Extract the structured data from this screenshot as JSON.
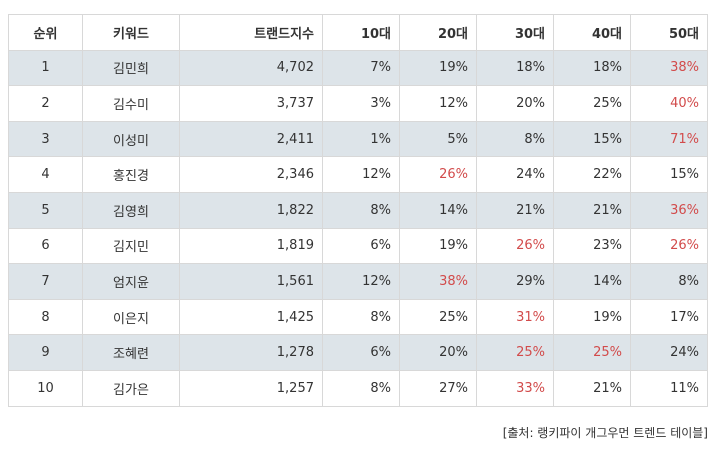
{
  "table": {
    "headers": [
      "순위",
      "키워드",
      "트랜드지수",
      "10대",
      "20대",
      "30대",
      "40대",
      "50대"
    ],
    "rows": [
      {
        "rank": "1",
        "keyword": "김민희",
        "index": "4,702",
        "ages": [
          "7%",
          "19%",
          "18%",
          "18%",
          "38%"
        ],
        "highlight": [
          false,
          false,
          false,
          false,
          true
        ],
        "shaded": true
      },
      {
        "rank": "2",
        "keyword": "김수미",
        "index": "3,737",
        "ages": [
          "3%",
          "12%",
          "20%",
          "25%",
          "40%"
        ],
        "highlight": [
          false,
          false,
          false,
          false,
          true
        ],
        "shaded": false
      },
      {
        "rank": "3",
        "keyword": "이성미",
        "index": "2,411",
        "ages": [
          "1%",
          "5%",
          "8%",
          "15%",
          "71%"
        ],
        "highlight": [
          false,
          false,
          false,
          false,
          true
        ],
        "shaded": true
      },
      {
        "rank": "4",
        "keyword": "홍진경",
        "index": "2,346",
        "ages": [
          "12%",
          "26%",
          "24%",
          "22%",
          "15%"
        ],
        "highlight": [
          false,
          true,
          false,
          false,
          false
        ],
        "shaded": false
      },
      {
        "rank": "5",
        "keyword": "김영희",
        "index": "1,822",
        "ages": [
          "8%",
          "14%",
          "21%",
          "21%",
          "36%"
        ],
        "highlight": [
          false,
          false,
          false,
          false,
          true
        ],
        "shaded": true
      },
      {
        "rank": "6",
        "keyword": "김지민",
        "index": "1,819",
        "ages": [
          "6%",
          "19%",
          "26%",
          "23%",
          "26%"
        ],
        "highlight": [
          false,
          false,
          true,
          false,
          true
        ],
        "shaded": false
      },
      {
        "rank": "7",
        "keyword": "엄지윤",
        "index": "1,561",
        "ages": [
          "12%",
          "38%",
          "29%",
          "14%",
          "8%"
        ],
        "highlight": [
          false,
          true,
          false,
          false,
          false
        ],
        "shaded": true
      },
      {
        "rank": "8",
        "keyword": "이은지",
        "index": "1,425",
        "ages": [
          "8%",
          "25%",
          "31%",
          "19%",
          "17%"
        ],
        "highlight": [
          false,
          false,
          true,
          false,
          false
        ],
        "shaded": false
      },
      {
        "rank": "9",
        "keyword": "조혜련",
        "index": "1,278",
        "ages": [
          "6%",
          "20%",
          "25%",
          "25%",
          "24%"
        ],
        "highlight": [
          false,
          false,
          true,
          true,
          false
        ],
        "shaded": true
      },
      {
        "rank": "10",
        "keyword": "김가은",
        "index": "1,257",
        "ages": [
          "8%",
          "27%",
          "33%",
          "21%",
          "11%"
        ],
        "highlight": [
          false,
          false,
          true,
          false,
          false
        ],
        "shaded": false
      }
    ]
  },
  "source": "[출처: 랭키파이 개그우먼 트렌드 테이블]",
  "colors": {
    "highlight": "#d24b4b",
    "row_shade": "#dde4e9",
    "border": "#d8d8d8",
    "text": "#333333"
  }
}
